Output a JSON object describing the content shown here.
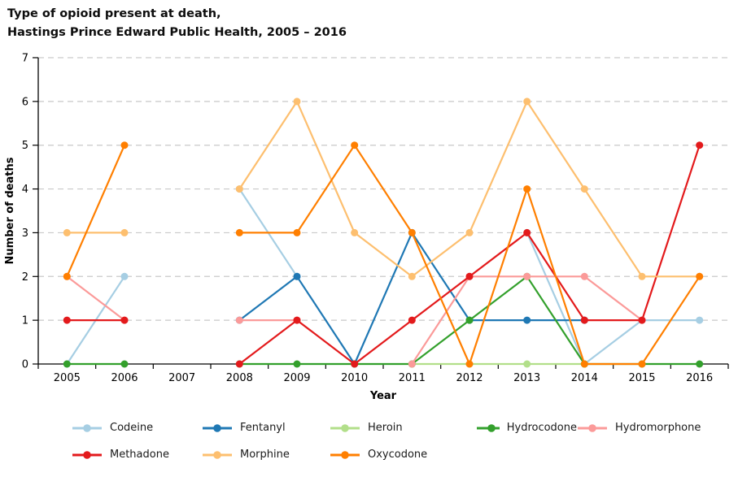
{
  "header": {
    "title_line1": "Type of opioid present at death,",
    "title_line2": "Hastings Prince Edward Public Health, 2005 – 2016"
  },
  "chart_data": {
    "type": "line",
    "title": "Type of opioid present at death, Hastings Prince Edward Public Health, 2005 – 2016",
    "xlabel": "Year",
    "ylabel": "Number of deaths",
    "x": [
      2005,
      2006,
      2007,
      2008,
      2009,
      2010,
      2011,
      2012,
      2013,
      2014,
      2015,
      2016
    ],
    "ylim": [
      0,
      7
    ],
    "yticks": [
      0,
      1,
      2,
      3,
      4,
      5,
      6,
      7
    ],
    "grid": "horizontal-dashed-gray",
    "legend_position": "bottom",
    "marker": "circle",
    "note_missing_data": "null = no data point plotted for that year (gap in line)",
    "series": [
      {
        "name": "Codeine",
        "color": "#a6cee3",
        "values": [
          0,
          2,
          null,
          4,
          2,
          null,
          null,
          null,
          3,
          0,
          1,
          1
        ]
      },
      {
        "name": "Fentanyl",
        "color": "#1f78b4",
        "values": [
          null,
          null,
          null,
          1,
          2,
          0,
          3,
          1,
          1,
          1,
          null,
          null
        ]
      },
      {
        "name": "Heroin",
        "color": "#b2df8a",
        "values": [
          null,
          null,
          null,
          null,
          null,
          null,
          0,
          0,
          0,
          0,
          null,
          null
        ]
      },
      {
        "name": "Hydrocodone",
        "color": "#33a02c",
        "values": [
          0,
          0,
          null,
          0,
          0,
          0,
          0,
          1,
          2,
          0,
          0,
          0
        ]
      },
      {
        "name": "Hydromorphone",
        "color": "#fb9a99",
        "values": [
          2,
          1,
          null,
          1,
          1,
          null,
          0,
          2,
          2,
          2,
          1,
          null
        ]
      },
      {
        "name": "Methadone",
        "color": "#e31a1c",
        "values": [
          1,
          1,
          null,
          0,
          1,
          0,
          1,
          2,
          3,
          1,
          1,
          5
        ]
      },
      {
        "name": "Morphine",
        "color": "#fdbf6f",
        "values": [
          3,
          3,
          null,
          4,
          6,
          3,
          2,
          3,
          6,
          4,
          2,
          2
        ]
      },
      {
        "name": "Oxycodone",
        "color": "#ff7f00",
        "values": [
          2,
          5,
          null,
          3,
          3,
          5,
          3,
          0,
          4,
          0,
          0,
          2
        ]
      }
    ]
  }
}
